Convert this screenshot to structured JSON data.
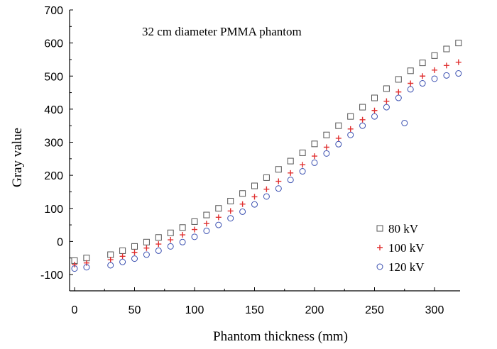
{
  "chart_data": {
    "type": "scatter",
    "title": "32 cm diameter PMMA phantom",
    "xlabel": "Phantom thickness (mm)",
    "ylabel": "Gray value",
    "xlim": [
      -5,
      330
    ],
    "ylim": [
      -150,
      700
    ],
    "xticks": [
      0,
      50,
      100,
      150,
      200,
      250,
      300
    ],
    "yticks": [
      -100,
      0,
      100,
      200,
      300,
      400,
      500,
      600,
      700
    ],
    "xtick_labels": [
      "0",
      "50",
      "100",
      "150",
      "200",
      "250",
      "300"
    ],
    "ytick_labels": [
      "-100",
      "0",
      "100",
      "200",
      "300",
      "400",
      "500",
      "600",
      "700"
    ],
    "grid": false,
    "legend_position": "bottom-right",
    "series": [
      {
        "name": "80 kV",
        "marker": "square",
        "color": "#555555",
        "x": [
          0,
          10,
          30,
          40,
          50,
          60,
          70,
          80,
          90,
          100,
          110,
          120,
          130,
          140,
          150,
          160,
          170,
          180,
          190,
          200,
          210,
          220,
          230,
          240,
          250,
          260,
          270,
          280,
          290,
          300,
          310,
          320
        ],
        "y": [
          -58,
          -50,
          -40,
          -28,
          -15,
          -2,
          12,
          26,
          42,
          60,
          80,
          100,
          122,
          145,
          168,
          193,
          218,
          243,
          268,
          295,
          322,
          350,
          378,
          406,
          434,
          462,
          490,
          516,
          540,
          562,
          582,
          600
        ]
      },
      {
        "name": "100 kV",
        "marker": "plus",
        "color": "#e03030",
        "x": [
          0,
          10,
          30,
          40,
          50,
          60,
          70,
          80,
          90,
          100,
          110,
          120,
          130,
          140,
          150,
          160,
          170,
          180,
          190,
          200,
          210,
          220,
          230,
          240,
          250,
          260,
          270,
          280,
          290,
          300,
          310,
          320
        ],
        "y": [
          -70,
          -65,
          -55,
          -45,
          -33,
          -20,
          -8,
          5,
          20,
          36,
          54,
          73,
          92,
          113,
          135,
          158,
          182,
          207,
          232,
          258,
          285,
          312,
          340,
          368,
          396,
          424,
          452,
          478,
          500,
          518,
          532,
          542
        ]
      },
      {
        "name": "120 kV",
        "marker": "circle",
        "color": "#3a4fb0",
        "x": [
          0,
          10,
          30,
          40,
          50,
          60,
          70,
          80,
          90,
          100,
          110,
          120,
          130,
          140,
          150,
          160,
          170,
          180,
          190,
          200,
          210,
          220,
          230,
          240,
          250,
          260,
          270,
          275,
          280,
          290,
          300,
          310,
          320
        ],
        "y": [
          -82,
          -78,
          -72,
          -62,
          -52,
          -40,
          -28,
          -15,
          -2,
          14,
          32,
          50,
          70,
          90,
          112,
          136,
          160,
          186,
          212,
          238,
          266,
          294,
          322,
          350,
          378,
          406,
          434,
          358,
          460,
          478,
          492,
          502,
          508
        ]
      }
    ]
  }
}
